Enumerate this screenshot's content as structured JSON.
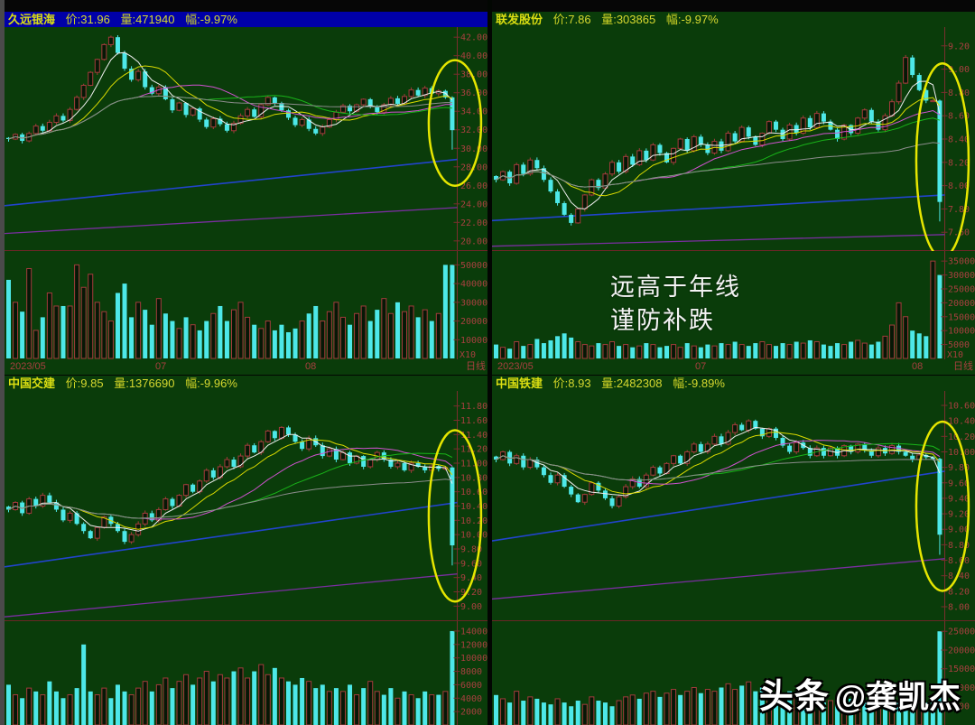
{
  "x_axis": {
    "labels": [
      "2023/05",
      "07",
      "08"
    ],
    "period_label": "日线",
    "vol_multiplier_label": "X10"
  },
  "annotation": {
    "line1": "远高于年线",
    "line2": "谨防补跌"
  },
  "watermark": {
    "brand": "头条",
    "handle": "@龚凯杰"
  },
  "colors": {
    "background": "#0a3c0a",
    "title_selected_bg": "#0000a8",
    "title_text": "#d2d41e",
    "axis_text": "#a84040",
    "axis_line": "#7a2e2e",
    "candle_down": "#4de8e8",
    "candle_up_stroke": "#a33c3c",
    "candle_up_fill": "#061806",
    "ma5": "#eeeeee",
    "ma10": "#dada00",
    "ma20": "#d052d0",
    "ma30": "#19b419",
    "ma60": "#8c8c8c",
    "year_line": "#2244cc",
    "half_year_line": "#7a2ea0",
    "ellipse": "#e6e600",
    "annotation_text": "#f4f4f4"
  },
  "panels": [
    {
      "id": "jiuyuan-yinhai",
      "selected": true,
      "show_x10": true,
      "title": {
        "name": "久远银海",
        "price_label": "价:",
        "price": "31.96",
        "vol_label": "量:",
        "volume": "471940",
        "range_label": "幅:",
        "change": "-9.97%"
      },
      "price_axis": {
        "labels": [
          "42.00",
          "40.00",
          "38.00",
          "36.00",
          "34.00",
          "32.00",
          "30.00",
          "28.00",
          "26.00",
          "24.00",
          "22.00",
          "20.00"
        ],
        "max": 42.7,
        "min": 19.3
      },
      "volume_axis": {
        "labels": [
          "50000",
          "40000",
          "30000",
          "20000",
          "10000"
        ],
        "max": 55000
      },
      "year_line": {
        "start": 23.8,
        "end": 28.8
      },
      "half_year_line": {
        "start": 20.8,
        "end": 23.6
      },
      "ellipse": true,
      "chart_data": {
        "type": "candlestick",
        "closes": [
          31.0,
          31.5,
          30.8,
          31.6,
          32.4,
          31.9,
          32.8,
          33.5,
          33.0,
          34.2,
          35.5,
          36.8,
          38.2,
          39.6,
          41.2,
          42.0,
          40.3,
          38.6,
          37.4,
          38.3,
          36.6,
          35.9,
          36.6,
          35.3,
          34.1,
          34.9,
          33.6,
          34.3,
          33.1,
          32.3,
          33.2,
          32.6,
          31.9,
          32.7,
          33.5,
          34.2,
          33.4,
          34.7,
          35.5,
          34.9,
          34.1,
          33.3,
          32.5,
          33.1,
          32.1,
          31.6,
          32.3,
          33.1,
          33.9,
          34.6,
          34.0,
          34.7,
          35.3,
          34.5,
          33.9,
          34.7,
          35.4,
          34.8,
          35.6,
          36.3,
          35.7,
          36.5,
          35.9,
          36.2,
          35.5,
          31.96
        ],
        "volumes": [
          42000,
          30000,
          25000,
          48000,
          15000,
          22000,
          35000,
          28000,
          28000,
          28000,
          50000,
          38000,
          45000,
          30000,
          25000,
          20000,
          35000,
          40000,
          22000,
          30000,
          26000,
          18000,
          32000,
          24000,
          20000,
          16000,
          22000,
          18000,
          15000,
          20000,
          24000,
          28000,
          20000,
          26000,
          30000,
          22000,
          18000,
          16000,
          20000,
          15000,
          18000,
          14000,
          16000,
          20000,
          24000,
          28000,
          20000,
          25000,
          30000,
          22000,
          18000,
          24000,
          28000,
          20000,
          26000,
          32000,
          24000,
          30000,
          25000,
          28000,
          22000,
          26000,
          20000,
          24000,
          50000,
          50000
        ]
      }
    },
    {
      "id": "lianfa-gufen",
      "selected": false,
      "show_x10": true,
      "title": {
        "name": "联发股份",
        "price_label": "价:",
        "price": "7.86",
        "vol_label": "量:",
        "volume": "303865",
        "range_label": "幅:",
        "change": "-9.97%"
      },
      "price_axis": {
        "labels": [
          "9.20",
          "9.00",
          "8.80",
          "8.60",
          "8.40",
          "8.20",
          "8.00",
          "7.80",
          "7.60"
        ],
        "max": 9.33,
        "min": 7.47
      },
      "volume_axis": {
        "labels": [
          "35000",
          "30000",
          "25000",
          "20000",
          "15000",
          "10000",
          "5000"
        ],
        "max": 37000
      },
      "year_line": {
        "start": 7.7,
        "end": 7.92
      },
      "half_year_line": {
        "start": 7.48,
        "end": 7.58
      },
      "ellipse": true,
      "chart_data": {
        "type": "candlestick",
        "closes": [
          8.05,
          8.12,
          8.02,
          8.18,
          8.1,
          8.22,
          8.15,
          8.05,
          7.95,
          7.85,
          7.75,
          7.68,
          7.8,
          7.92,
          8.05,
          7.98,
          8.1,
          8.2,
          8.12,
          8.25,
          8.18,
          8.3,
          8.22,
          8.35,
          8.28,
          8.2,
          8.32,
          8.4,
          8.3,
          8.42,
          8.35,
          8.28,
          8.38,
          8.3,
          8.45,
          8.38,
          8.5,
          8.42,
          8.35,
          8.45,
          8.55,
          8.48,
          8.4,
          8.52,
          8.45,
          8.58,
          8.5,
          8.62,
          8.55,
          8.48,
          8.4,
          8.52,
          8.45,
          8.58,
          8.65,
          8.55,
          8.48,
          8.6,
          8.72,
          8.88,
          9.1,
          8.95,
          8.82,
          8.73,
          8.73,
          7.86
        ],
        "volumes": [
          5000,
          4000,
          3500,
          6000,
          4500,
          5000,
          7000,
          5500,
          6500,
          8000,
          9000,
          7500,
          6000,
          5000,
          4500,
          5500,
          5000,
          6000,
          4500,
          5000,
          4000,
          4500,
          5500,
          5000,
          4000,
          4500,
          5000,
          4000,
          5500,
          4500,
          4000,
          5000,
          4500,
          5500,
          5000,
          6000,
          5000,
          4500,
          5500,
          6000,
          5000,
          4500,
          5500,
          5000,
          6000,
          5500,
          6500,
          6000,
          5000,
          4500,
          5500,
          5000,
          6000,
          6500,
          5500,
          5000,
          6000,
          8000,
          12000,
          20000,
          15000,
          10000,
          9000,
          8000,
          35000,
          30000
        ]
      }
    },
    {
      "id": "zhongguo-jiaojian",
      "selected": false,
      "show_x10": false,
      "title": {
        "name": "中国交建",
        "price_label": "价:",
        "price": "9.85",
        "vol_label": "量:",
        "volume": "1376690",
        "range_label": "幅:",
        "change": "-9.96%"
      },
      "price_axis": {
        "labels": [
          "11.80",
          "11.60",
          "11.40",
          "11.20",
          "11.00",
          "10.80",
          "10.60",
          "10.40",
          "10.20",
          "10.00",
          "9.80",
          "9.60",
          "9.40",
          "9.20",
          "9.00"
        ],
        "max": 11.96,
        "min": 8.84
      },
      "volume_axis": {
        "labels": [
          "14000",
          "12000",
          "10000",
          "8000",
          "6000",
          "4000",
          "2000"
        ],
        "max": 14800
      },
      "year_line": {
        "start": 9.55,
        "end": 10.45
      },
      "half_year_line": {
        "start": 8.85,
        "end": 9.45
      },
      "ellipse": true,
      "chart_data": {
        "type": "candlestick",
        "closes": [
          10.35,
          10.45,
          10.3,
          10.5,
          10.4,
          10.55,
          10.45,
          10.35,
          10.2,
          10.3,
          10.15,
          10.05,
          9.95,
          10.1,
          10.25,
          10.15,
          10.05,
          9.9,
          10.0,
          10.15,
          10.3,
          10.2,
          10.35,
          10.5,
          10.4,
          10.55,
          10.7,
          10.6,
          10.75,
          10.9,
          10.8,
          10.95,
          11.05,
          10.95,
          11.1,
          11.25,
          11.15,
          11.3,
          11.45,
          11.35,
          11.5,
          11.4,
          11.3,
          11.2,
          11.35,
          11.25,
          11.1,
          11.2,
          11.05,
          11.15,
          11.0,
          11.1,
          10.95,
          11.05,
          11.15,
          11.05,
          10.95,
          11.0,
          10.9,
          11.0,
          10.95,
          10.9,
          10.96,
          10.92,
          10.94,
          9.85
        ],
        "volumes": [
          6000,
          4500,
          4000,
          5500,
          5000,
          4500,
          6500,
          5000,
          4000,
          4500,
          5500,
          12000,
          5000,
          4500,
          5500,
          4000,
          6000,
          5000,
          4500,
          5500,
          6500,
          5000,
          6000,
          7000,
          5500,
          6500,
          7500,
          6000,
          7000,
          8000,
          6500,
          7500,
          7000,
          8000,
          8500,
          7000,
          8000,
          9000,
          7500,
          8500,
          7000,
          6500,
          6000,
          7000,
          6500,
          5500,
          6000,
          5000,
          5500,
          5000,
          6000,
          4500,
          5500,
          6500,
          5000,
          4500,
          5500,
          4000,
          5000,
          4500,
          4000,
          5000,
          4500,
          4500,
          5000,
          14000
        ]
      }
    },
    {
      "id": "zhongguo-tiejian",
      "selected": false,
      "show_x10": false,
      "title": {
        "name": "中国铁建",
        "price_label": "价:",
        "price": "8.93",
        "vol_label": "量:",
        "volume": "2482308",
        "range_label": "幅:",
        "change": "-9.89%"
      },
      "price_axis": {
        "labels": [
          "10.60",
          "10.40",
          "10.20",
          "10.00",
          "9.80",
          "9.60",
          "9.40",
          "9.20",
          "9.00",
          "8.80",
          "8.60",
          "8.40",
          "8.20",
          "8.00"
        ],
        "max": 10.74,
        "min": 7.86
      },
      "volume_axis": {
        "labels": [
          "25000",
          "20000",
          "15000",
          "10000",
          "5000"
        ],
        "max": 26500
      },
      "year_line": {
        "start": 8.85,
        "end": 9.75
      },
      "half_year_line": {
        "start": 8.1,
        "end": 8.62
      },
      "ellipse": true,
      "chart_data": {
        "type": "candlestick",
        "closes": [
          9.9,
          10.0,
          9.85,
          9.95,
          9.8,
          9.9,
          9.8,
          9.7,
          9.6,
          9.7,
          9.55,
          9.45,
          9.35,
          9.45,
          9.6,
          9.5,
          9.4,
          9.3,
          9.42,
          9.55,
          9.65,
          9.55,
          9.7,
          9.8,
          9.72,
          9.85,
          9.95,
          9.85,
          10.0,
          10.1,
          10.0,
          10.1,
          10.2,
          10.1,
          10.25,
          10.35,
          10.28,
          10.4,
          10.3,
          10.2,
          10.3,
          10.18,
          10.08,
          10.0,
          10.12,
          10.05,
          9.95,
          10.05,
          9.95,
          10.05,
          9.95,
          10.08,
          10.0,
          10.1,
          10.02,
          9.95,
          10.05,
          9.98,
          10.08,
          10.0,
          9.95,
          9.9,
          9.96,
          9.93,
          9.91,
          8.93
        ],
        "volumes": [
          8000,
          7000,
          6000,
          9000,
          6500,
          7500,
          7000,
          6000,
          5500,
          7000,
          6000,
          5000,
          6500,
          5500,
          7500,
          6500,
          6000,
          5000,
          6500,
          7500,
          8000,
          7000,
          8500,
          9000,
          7500,
          8500,
          9500,
          8000,
          9000,
          10000,
          8500,
          9500,
          9000,
          10000,
          11000,
          9500,
          10500,
          11500,
          9000,
          10000,
          8500,
          8000,
          7500,
          9000,
          8000,
          7000,
          7500,
          6500,
          7000,
          6500,
          7500,
          6000,
          7000,
          8000,
          6500,
          6000,
          7000,
          5500,
          6500,
          6000,
          5500,
          6500,
          6000,
          6000,
          6500,
          25000
        ]
      }
    }
  ]
}
